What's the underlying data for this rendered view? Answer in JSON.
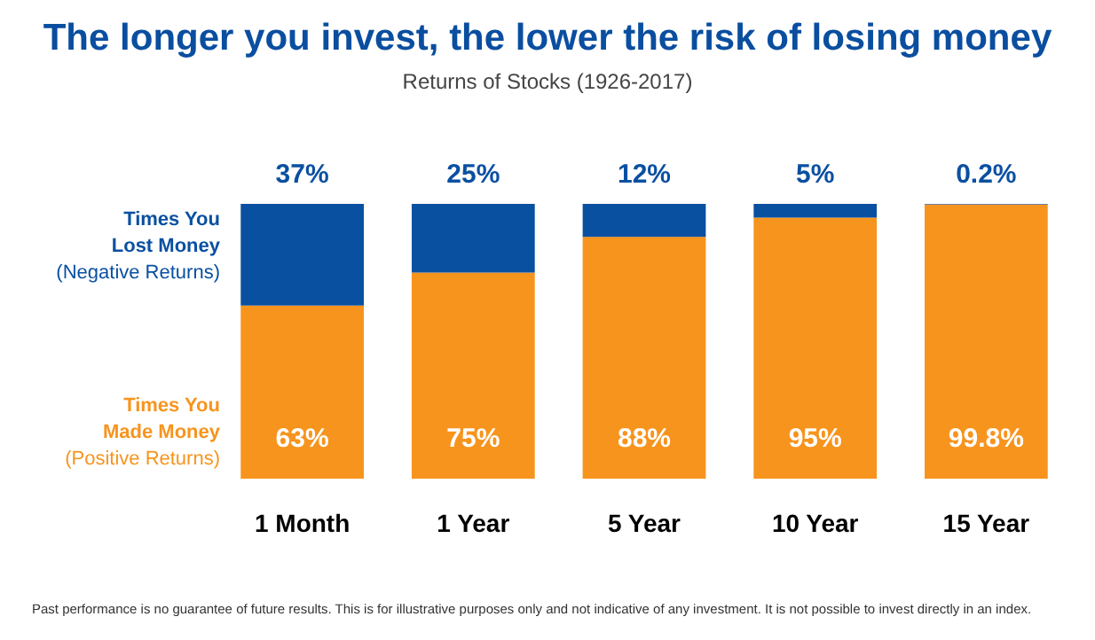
{
  "chart_data": {
    "type": "bar",
    "stacked": true,
    "title": "The longer you invest, the lower the risk of losing money",
    "subtitle": "Returns of Stocks (1926-2017)",
    "categories": [
      "1 Month",
      "1 Year",
      "5 Year",
      "10 Year",
      "15 Year"
    ],
    "tick_labels": "x",
    "series": [
      {
        "name": "Times You\nMade Money\n(Positive Returns)",
        "color": "#f7941d",
        "values": [
          63,
          75,
          88,
          95,
          99.8
        ],
        "value_labels": [
          "63%",
          "75%",
          "88%",
          "95%",
          "99.8%"
        ]
      },
      {
        "name": "Times You\nLost Money\n(Negative Returns)",
        "color": "#0a50a1",
        "values": [
          37,
          25,
          12,
          5,
          0.2
        ],
        "value_labels": [
          "37%",
          "25%",
          "12%",
          "5%",
          "0.2%"
        ]
      }
    ],
    "annotations": [
      "Past performance is no guarantee of future results. This is for illustrative purposes only and not indicative of any investment. It is not possible to invest directly in an index."
    ]
  }
}
